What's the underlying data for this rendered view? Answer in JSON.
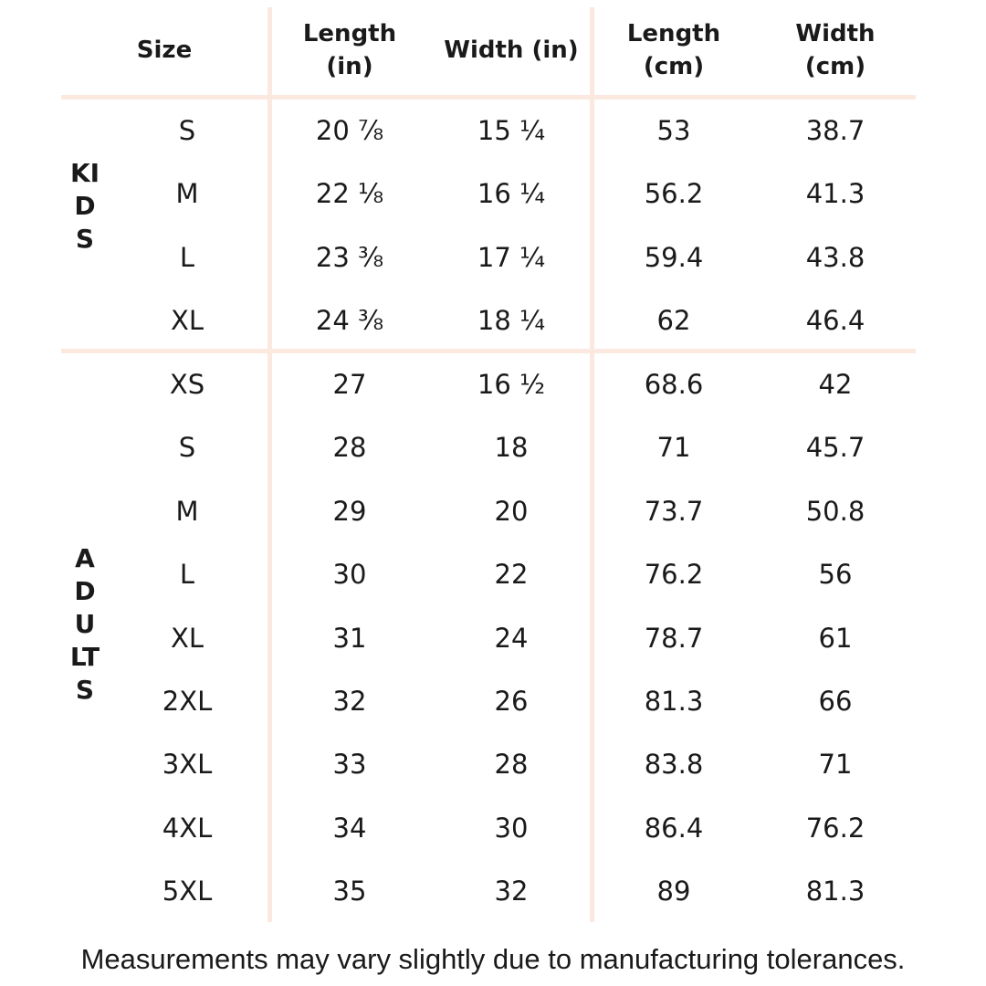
{
  "colors": {
    "text": "#1a1a1a",
    "grid_line": "#fbe9df",
    "background": "#ffffff"
  },
  "table": {
    "headers": [
      {
        "label": "Size"
      },
      {
        "label": "Length\n(in)"
      },
      {
        "label": "Width (in)"
      },
      {
        "label": "Length\n(cm)"
      },
      {
        "label": "Width\n(cm)"
      }
    ],
    "sections": [
      {
        "group_label": "KIDS",
        "rows": [
          {
            "size": "S",
            "length_in": "20 ⅞",
            "width_in": "15 ¼",
            "length_cm": "53",
            "width_cm": "38.7"
          },
          {
            "size": "M",
            "length_in": "22 ⅛",
            "width_in": "16 ¼",
            "length_cm": "56.2",
            "width_cm": "41.3"
          },
          {
            "size": "L",
            "length_in": "23 ⅜",
            "width_in": "17 ¼",
            "length_cm": "59.4",
            "width_cm": "43.8"
          },
          {
            "size": "XL",
            "length_in": "24 ⅜",
            "width_in": "18 ¼",
            "length_cm": "62",
            "width_cm": "46.4"
          }
        ]
      },
      {
        "group_label": "ADULTS",
        "rows": [
          {
            "size": "XS",
            "length_in": "27",
            "width_in": "16 ½",
            "length_cm": "68.6",
            "width_cm": "42"
          },
          {
            "size": "S",
            "length_in": "28",
            "width_in": "18",
            "length_cm": "71",
            "width_cm": "45.7"
          },
          {
            "size": "M",
            "length_in": "29",
            "width_in": "20",
            "length_cm": "73.7",
            "width_cm": "50.8"
          },
          {
            "size": "L",
            "length_in": "30",
            "width_in": "22",
            "length_cm": "76.2",
            "width_cm": "56"
          },
          {
            "size": "XL",
            "length_in": "31",
            "width_in": "24",
            "length_cm": "78.7",
            "width_cm": "61"
          },
          {
            "size": "2XL",
            "length_in": "32",
            "width_in": "26",
            "length_cm": "81.3",
            "width_cm": "66"
          },
          {
            "size": "3XL",
            "length_in": "33",
            "width_in": "28",
            "length_cm": "83.8",
            "width_cm": "71"
          },
          {
            "size": "4XL",
            "length_in": "34",
            "width_in": "30",
            "length_cm": "86.4",
            "width_cm": "76.2"
          },
          {
            "size": "5XL",
            "length_in": "35",
            "width_in": "32",
            "length_cm": "89",
            "width_cm": "81.3"
          }
        ]
      }
    ]
  },
  "footer": {
    "note": "Measurements may vary slightly due to manufacturing tolerances."
  }
}
